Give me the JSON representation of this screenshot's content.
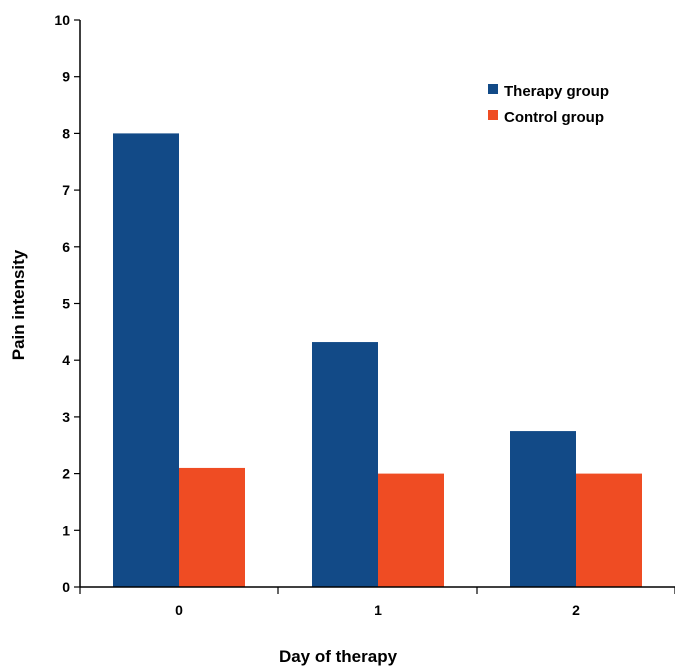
{
  "chart_data": {
    "type": "bar",
    "categories": [
      "0",
      "1",
      "2"
    ],
    "series": [
      {
        "name": "Therapy group",
        "values": [
          8.0,
          4.32,
          2.75
        ],
        "color": "#124a87"
      },
      {
        "name": "Control group",
        "values": [
          2.1,
          2.0,
          2.0
        ],
        "color": "#ef4c23"
      }
    ],
    "xlabel": "Day of therapy",
    "ylabel": "Pain intensity",
    "ylim": [
      0,
      10
    ],
    "yticks": [
      "0",
      "1",
      "2",
      "3",
      "4",
      "5",
      "6",
      "7",
      "8",
      "9",
      "10"
    ],
    "grid": false,
    "legend_position": "top-right"
  }
}
